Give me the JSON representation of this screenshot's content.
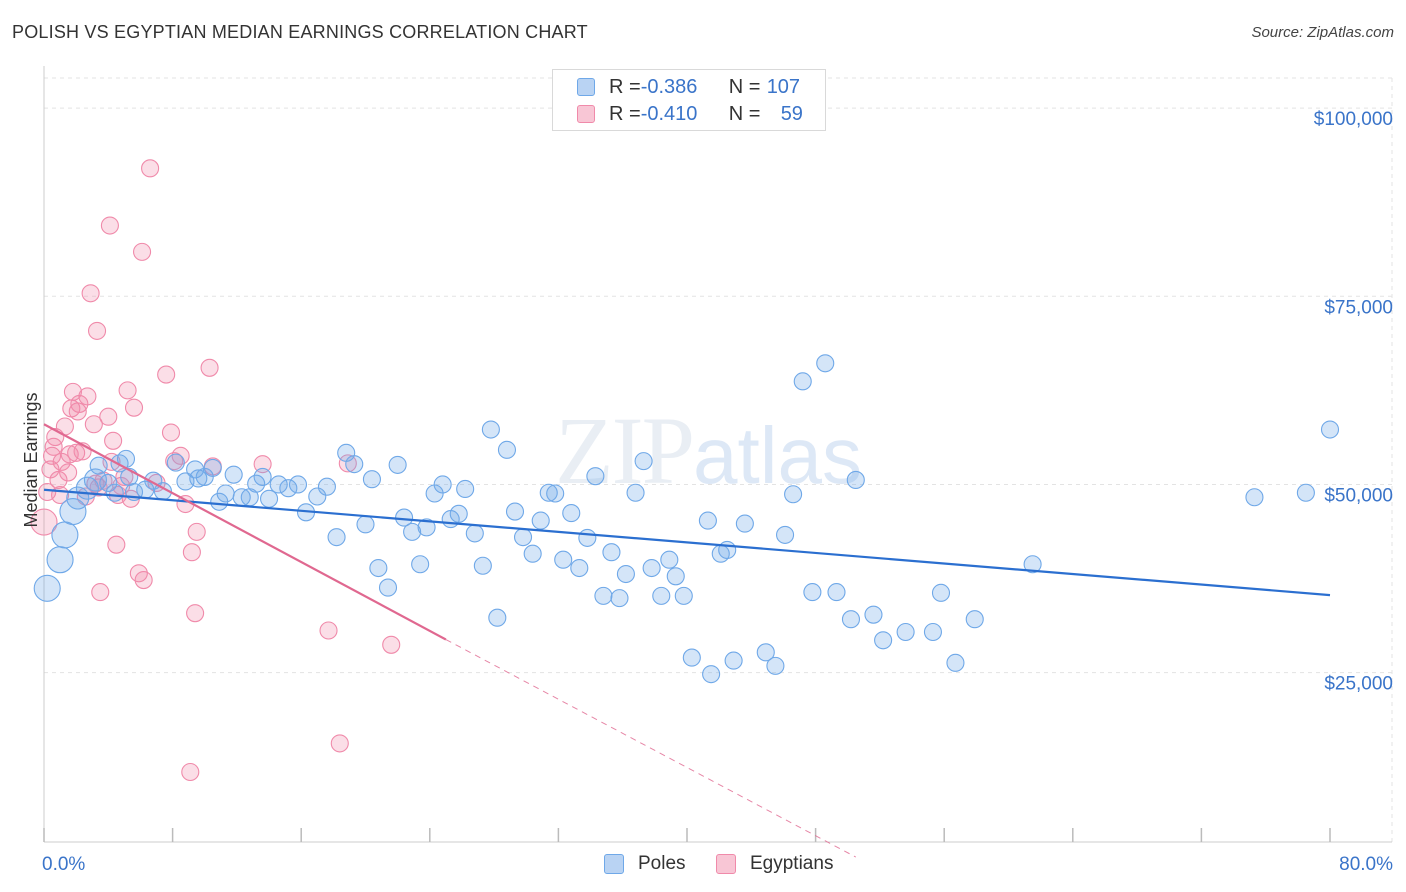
{
  "header": {
    "title": "POLISH VS EGYPTIAN MEDIAN EARNINGS CORRELATION CHART",
    "source": "Source: ZipAtlas.com"
  },
  "watermark": {
    "zip": "ZIP",
    "atlas": "atlas"
  },
  "legend": {
    "rows": [
      {
        "r_label": "R = ",
        "r_value": "-0.386",
        "n_label": "N = ",
        "n_value": "107",
        "color": "#6fa8e8"
      },
      {
        "r_label": "R = ",
        "r_value": "-0.410",
        "n_label": "N = ",
        "n_value": "59",
        "color": "#f08aaa"
      }
    ]
  },
  "bottom_legend": {
    "poles": "Poles",
    "egyptians": "Egyptians"
  },
  "chart_data": {
    "type": "scatter",
    "title": "POLISH VS EGYPTIAN MEDIAN EARNINGS CORRELATION CHART",
    "xlabel": "",
    "ylabel": "Median Earnings",
    "xlim": [
      0,
      80
    ],
    "ylim": [
      2500,
      104000
    ],
    "x_tick_labels": [
      "0.0%",
      "80.0%"
    ],
    "y_ticks": [
      25000,
      50000,
      75000,
      100000
    ],
    "y_tick_labels": [
      "$25,000",
      "$50,000",
      "$75,000",
      "$100,000"
    ],
    "colors": {
      "poles": "#6fa8e8",
      "poles_line": "#2b6fd0",
      "egyptians": "#f08aaa",
      "egyptians_line": "#e06890"
    },
    "series": [
      {
        "name": "Poles",
        "R": -0.386,
        "N": 107,
        "trend": {
          "x0": 0.0,
          "y0": 49300,
          "x1": 80.0,
          "y1": 35300
        },
        "points": [
          [
            0.2,
            36200,
            3
          ],
          [
            1.0,
            40000,
            3
          ],
          [
            1.3,
            43300,
            3
          ],
          [
            1.8,
            46400,
            3
          ],
          [
            2.1,
            48200,
            2
          ],
          [
            2.7,
            49500,
            2
          ],
          [
            3.2,
            50600,
            2
          ],
          [
            3.4,
            52500,
            1
          ],
          [
            4.0,
            50200,
            1
          ],
          [
            4.4,
            48900,
            1
          ],
          [
            4.7,
            52800,
            1
          ],
          [
            5.1,
            53400,
            1
          ],
          [
            5.3,
            51000,
            1
          ],
          [
            5.6,
            49000,
            1
          ],
          [
            6.3,
            49300,
            1
          ],
          [
            6.8,
            50500,
            1
          ],
          [
            7.4,
            49100,
            1
          ],
          [
            8.2,
            52900,
            1
          ],
          [
            8.8,
            50400,
            1
          ],
          [
            9.4,
            52000,
            1
          ],
          [
            9.6,
            50800,
            1
          ],
          [
            10.0,
            51000,
            1
          ],
          [
            10.5,
            52200,
            1
          ],
          [
            10.9,
            47700,
            1
          ],
          [
            11.3,
            48800,
            1
          ],
          [
            11.8,
            51300,
            1
          ],
          [
            12.3,
            48300,
            1
          ],
          [
            12.8,
            48300,
            1
          ],
          [
            13.2,
            50100,
            1
          ],
          [
            13.6,
            51000,
            1
          ],
          [
            14.0,
            48100,
            1
          ],
          [
            14.6,
            50000,
            1
          ],
          [
            15.2,
            49500,
            1
          ],
          [
            15.8,
            50000,
            1
          ],
          [
            16.3,
            46300,
            1
          ],
          [
            17.0,
            48400,
            1
          ],
          [
            17.6,
            49700,
            1
          ],
          [
            18.2,
            43000,
            1
          ],
          [
            18.8,
            54200,
            1
          ],
          [
            19.3,
            52700,
            1
          ],
          [
            20.0,
            44700,
            1
          ],
          [
            20.4,
            50700,
            1
          ],
          [
            20.8,
            38900,
            1
          ],
          [
            21.4,
            36300,
            1
          ],
          [
            22.0,
            52600,
            1
          ],
          [
            22.4,
            45600,
            1
          ],
          [
            22.9,
            43700,
            1
          ],
          [
            23.4,
            39400,
            1
          ],
          [
            23.8,
            44300,
            1
          ],
          [
            24.3,
            48800,
            1
          ],
          [
            24.8,
            50000,
            1
          ],
          [
            25.3,
            45400,
            1
          ],
          [
            25.8,
            46100,
            1
          ],
          [
            26.2,
            49400,
            1
          ],
          [
            26.8,
            43500,
            1
          ],
          [
            27.3,
            39200,
            1
          ],
          [
            27.8,
            57300,
            1
          ],
          [
            28.2,
            32300,
            1
          ],
          [
            28.8,
            54600,
            1
          ],
          [
            29.3,
            46400,
            1
          ],
          [
            29.8,
            43000,
            1
          ],
          [
            30.4,
            40800,
            1
          ],
          [
            30.9,
            45200,
            1
          ],
          [
            31.4,
            48900,
            1
          ],
          [
            31.8,
            48800,
            1
          ],
          [
            32.3,
            40000,
            1
          ],
          [
            32.8,
            46200,
            1
          ],
          [
            33.3,
            38900,
            1
          ],
          [
            33.8,
            42900,
            1
          ],
          [
            34.3,
            51100,
            1
          ],
          [
            34.8,
            35200,
            1
          ],
          [
            35.3,
            41000,
            1
          ],
          [
            35.8,
            34900,
            1
          ],
          [
            36.2,
            38100,
            1
          ],
          [
            36.8,
            48900,
            1
          ],
          [
            37.3,
            53100,
            1
          ],
          [
            37.8,
            38900,
            1
          ],
          [
            38.4,
            35200,
            1
          ],
          [
            38.9,
            40000,
            1
          ],
          [
            39.3,
            37800,
            1
          ],
          [
            39.8,
            35200,
            1
          ],
          [
            40.3,
            27000,
            1
          ],
          [
            41.3,
            45200,
            1
          ],
          [
            41.5,
            24800,
            1
          ],
          [
            42.1,
            40800,
            1
          ],
          [
            42.5,
            41300,
            1
          ],
          [
            42.9,
            26600,
            1
          ],
          [
            43.6,
            44800,
            1
          ],
          [
            44.9,
            27700,
            1
          ],
          [
            45.5,
            25900,
            1
          ],
          [
            46.1,
            43300,
            1
          ],
          [
            46.6,
            48700,
            1
          ],
          [
            47.2,
            63700,
            1
          ],
          [
            47.8,
            35700,
            1
          ],
          [
            48.6,
            66100,
            1
          ],
          [
            49.3,
            35700,
            1
          ],
          [
            50.2,
            32100,
            1
          ],
          [
            50.5,
            50600,
            1
          ],
          [
            51.6,
            32700,
            1
          ],
          [
            52.2,
            29300,
            1
          ],
          [
            53.6,
            30400,
            1
          ],
          [
            55.3,
            30400,
            1
          ],
          [
            55.8,
            35600,
            1
          ],
          [
            56.7,
            26300,
            1
          ],
          [
            57.9,
            32100,
            1
          ],
          [
            61.5,
            39400,
            1
          ],
          [
            75.3,
            48300,
            1
          ],
          [
            78.5,
            48900,
            1
          ],
          [
            80.0,
            57300,
            1
          ]
        ]
      },
      {
        "name": "Egyptians",
        "R": -0.41,
        "N": 59,
        "trend": {
          "x0": 0.0,
          "y0": 58000,
          "x1": 25.0,
          "y1": 29400
        },
        "trend_extension": {
          "x0": 25.0,
          "y0": 29400,
          "x1": 50.5,
          "y1": 500
        },
        "points": [
          [
            0.0,
            45000,
            3
          ],
          [
            0.2,
            49000,
            1
          ],
          [
            0.4,
            52000,
            1
          ],
          [
            0.5,
            53800,
            1
          ],
          [
            0.6,
            55000,
            1
          ],
          [
            0.7,
            56300,
            1
          ],
          [
            0.9,
            50600,
            1
          ],
          [
            1.0,
            48600,
            1
          ],
          [
            1.1,
            53000,
            1
          ],
          [
            1.3,
            57700,
            1
          ],
          [
            1.5,
            51600,
            1
          ],
          [
            1.6,
            54000,
            1
          ],
          [
            1.7,
            60100,
            1
          ],
          [
            1.8,
            62300,
            1
          ],
          [
            2.0,
            54200,
            1
          ],
          [
            2.1,
            59700,
            1
          ],
          [
            2.2,
            60700,
            1
          ],
          [
            2.4,
            54400,
            1
          ],
          [
            2.6,
            48400,
            1
          ],
          [
            2.7,
            61700,
            1
          ],
          [
            2.9,
            75400,
            1
          ],
          [
            3.1,
            58000,
            1
          ],
          [
            3.2,
            50100,
            1
          ],
          [
            3.3,
            70400,
            1
          ],
          [
            3.4,
            49600,
            1
          ],
          [
            3.5,
            35700,
            1
          ],
          [
            3.7,
            50500,
            1
          ],
          [
            4.0,
            59000,
            1
          ],
          [
            4.1,
            84400,
            1
          ],
          [
            4.2,
            53000,
            1
          ],
          [
            4.3,
            55800,
            1
          ],
          [
            4.5,
            42000,
            1
          ],
          [
            4.6,
            48600,
            1
          ],
          [
            4.8,
            49800,
            1
          ],
          [
            5.0,
            51000,
            1
          ],
          [
            5.2,
            62500,
            1
          ],
          [
            5.4,
            48100,
            1
          ],
          [
            5.6,
            60200,
            1
          ],
          [
            5.9,
            38200,
            1
          ],
          [
            6.1,
            80900,
            1
          ],
          [
            6.2,
            37300,
            1
          ],
          [
            6.6,
            92000,
            1
          ],
          [
            7.0,
            50200,
            1
          ],
          [
            7.6,
            64600,
            1
          ],
          [
            7.9,
            56900,
            1
          ],
          [
            8.1,
            53100,
            1
          ],
          [
            8.5,
            53800,
            1
          ],
          [
            8.8,
            47400,
            1
          ],
          [
            9.1,
            11800,
            1
          ],
          [
            9.2,
            41000,
            1
          ],
          [
            9.4,
            32900,
            1
          ],
          [
            9.5,
            43700,
            1
          ],
          [
            10.3,
            65500,
            1
          ],
          [
            10.5,
            52400,
            1
          ],
          [
            13.6,
            52700,
            1
          ],
          [
            17.7,
            30600,
            1
          ],
          [
            18.4,
            15600,
            1
          ],
          [
            18.9,
            52800,
            1
          ],
          [
            21.6,
            28700,
            1
          ]
        ]
      }
    ]
  }
}
